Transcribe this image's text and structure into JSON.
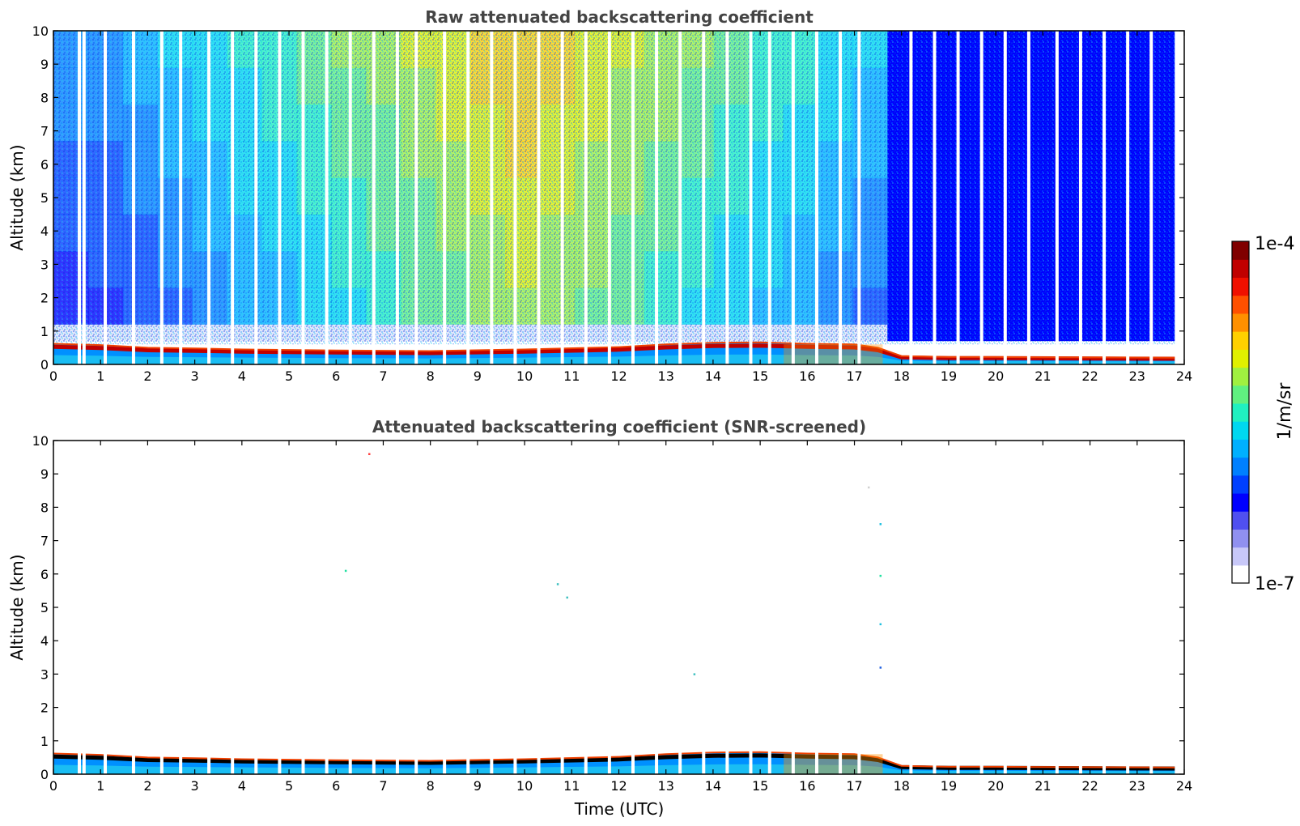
{
  "chart_data": [
    {
      "type": "heatmap",
      "title": "Raw attenuated backscattering coefficient",
      "xlabel": "",
      "ylabel": "Altitude (km)",
      "xlim": [
        0,
        24
      ],
      "ylim": [
        0,
        10
      ],
      "xticks": [
        "0",
        "1",
        "2",
        "3",
        "4",
        "5",
        "6",
        "7",
        "8",
        "9",
        "10",
        "11",
        "12",
        "13",
        "14",
        "15",
        "16",
        "17",
        "18",
        "19",
        "20",
        "21",
        "22",
        "23",
        "24"
      ],
      "yticks": [
        "0",
        "1",
        "2",
        "3",
        "4",
        "5",
        "6",
        "7",
        "8",
        "9",
        "10"
      ],
      "gaps_utc": [
        0.55,
        0.65,
        1.1,
        1.7,
        2.3,
        2.7,
        3.3,
        3.8,
        4.3,
        4.8,
        5.3,
        5.8,
        6.3,
        6.8,
        7.3,
        7.7,
        8.3,
        8.8,
        9.3,
        9.8,
        10.3,
        10.8,
        11.3,
        11.8,
        12.3,
        12.8,
        13.3,
        13.8,
        14.3,
        14.8,
        15.2,
        15.7,
        16.2,
        16.7,
        17.1,
        18.2,
        18.7,
        19.2,
        19.7,
        20.2,
        20.7,
        21.3,
        21.8,
        22.3,
        22.8,
        23.3
      ],
      "data_end_utc": 23.8,
      "boundary_layer_top_km": [
        {
          "t": 0,
          "h": 0.62
        },
        {
          "t": 1,
          "h": 0.58
        },
        {
          "t": 2,
          "h": 0.5
        },
        {
          "t": 3,
          "h": 0.48
        },
        {
          "t": 4,
          "h": 0.45
        },
        {
          "t": 6,
          "h": 0.42
        },
        {
          "t": 8,
          "h": 0.4
        },
        {
          "t": 10,
          "h": 0.45
        },
        {
          "t": 12,
          "h": 0.52
        },
        {
          "t": 13,
          "h": 0.6
        },
        {
          "t": 14,
          "h": 0.65
        },
        {
          "t": 15,
          "h": 0.66
        },
        {
          "t": 16,
          "h": 0.62
        },
        {
          "t": 17,
          "h": 0.6
        },
        {
          "t": 17.5,
          "h": 0.5
        },
        {
          "t": 18,
          "h": 0.25
        },
        {
          "t": 19,
          "h": 0.22
        },
        {
          "t": 20,
          "h": 0.22
        },
        {
          "t": 23.8,
          "h": 0.2
        }
      ],
      "noise_level_left": {
        "t_start": 0,
        "t_end": 17.7,
        "h_bottom": 1.2,
        "peak_utc": 10,
        "peak_value": 0.75
      },
      "noise_level_right": {
        "t_start": 17.7,
        "t_end": 23.8,
        "h_bottom": 0.7,
        "value": 0.2
      }
    },
    {
      "type": "heatmap",
      "title": "Attenuated backscattering coefficient (SNR-screened)",
      "xlabel": "Time (UTC)",
      "ylabel": "Altitude (km)",
      "xlim": [
        0,
        24
      ],
      "ylim": [
        0,
        10
      ],
      "xticks": [
        "0",
        "1",
        "2",
        "3",
        "4",
        "5",
        "6",
        "7",
        "8",
        "9",
        "10",
        "11",
        "12",
        "13",
        "14",
        "15",
        "16",
        "17",
        "18",
        "19",
        "20",
        "21",
        "22",
        "23",
        "24"
      ],
      "yticks": [
        "0",
        "1",
        "2",
        "3",
        "4",
        "5",
        "6",
        "7",
        "8",
        "9",
        "10"
      ],
      "isolated_points": [
        {
          "t": 6.7,
          "h": 9.6,
          "c": "#ff4040"
        },
        {
          "t": 6.2,
          "h": 6.1,
          "c": "#20e0a0"
        },
        {
          "t": 10.7,
          "h": 5.7,
          "c": "#40c0c0"
        },
        {
          "t": 10.9,
          "h": 5.3,
          "c": "#40c0c0"
        },
        {
          "t": 13.6,
          "h": 3.0,
          "c": "#40c0c0"
        },
        {
          "t": 17.55,
          "h": 7.5,
          "c": "#20c0e0"
        },
        {
          "t": 17.55,
          "h": 5.95,
          "c": "#20e0a0"
        },
        {
          "t": 17.55,
          "h": 4.5,
          "c": "#20c0e0"
        },
        {
          "t": 17.55,
          "h": 3.2,
          "c": "#2060e0"
        },
        {
          "t": 17.3,
          "h": 8.6,
          "c": "#d0d0d0"
        }
      ]
    }
  ],
  "colorbar": {
    "max_label": "1e-4",
    "min_label": "1e-7",
    "unit_label": "1/m/sr",
    "colors": [
      "#ffffff",
      "#c8c8f8",
      "#9090f0",
      "#5050f0",
      "#0000ff",
      "#0040ff",
      "#0080ff",
      "#00b0ff",
      "#00d8f0",
      "#20f0c0",
      "#60f080",
      "#a0f040",
      "#e0f000",
      "#ffd000",
      "#ff9000",
      "#ff5000",
      "#f01000",
      "#c00000",
      "#800000"
    ]
  }
}
